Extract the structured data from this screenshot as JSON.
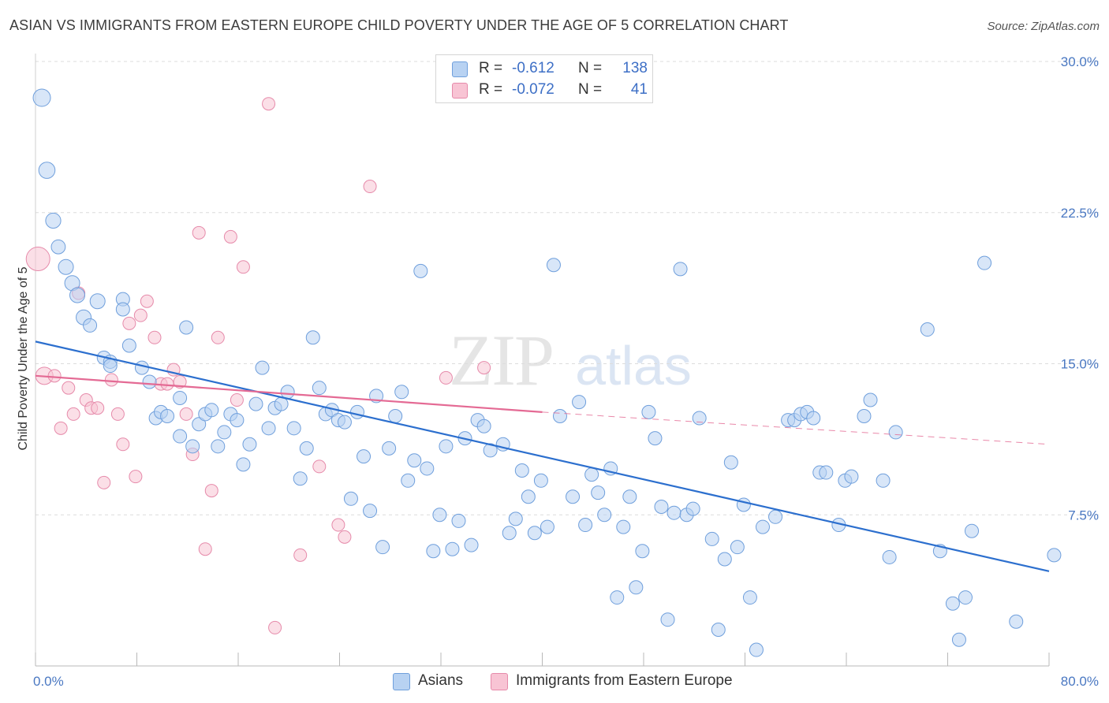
{
  "header": {
    "title": "ASIAN VS IMMIGRANTS FROM EASTERN EUROPE CHILD POVERTY UNDER THE AGE OF 5 CORRELATION CHART",
    "source": "Source: ZipAtlas.com"
  },
  "legend": {
    "r_label": "R =",
    "n_label": "N =",
    "items": [
      {
        "r": "-0.612",
        "n": "138"
      },
      {
        "r": "-0.072",
        "n": "41"
      }
    ]
  },
  "watermark": {
    "zip": "ZIP",
    "atlas": "atlas"
  },
  "colors": {
    "asians_fill": "#b8d2f2",
    "asians_stroke": "#6f9fdc",
    "asians_line": "#2c6fce",
    "imm_fill": "#f8c4d4",
    "imm_stroke": "#e68aaa",
    "imm_line": "#e46a94"
  },
  "chart_data": {
    "type": "scatter",
    "title": "ASIAN VS IMMIGRANTS FROM EASTERN EUROPE CHILD POVERTY UNDER THE AGE OF 5 CORRELATION CHART",
    "xlabel": "",
    "ylabel": "Child Poverty Under the Age of 5",
    "xlim": [
      0,
      80
    ],
    "ylim": [
      0,
      30
    ],
    "x_tick_labels": [
      "0.0%",
      "80.0%"
    ],
    "y_ticks": [
      7.5,
      15.0,
      22.5,
      30.0
    ],
    "y_tick_labels": [
      "7.5%",
      "15.0%",
      "22.5%",
      "30.0%"
    ],
    "grid": "horizontal dashed",
    "legend_position": "bottom",
    "series": [
      {
        "name": "Asians",
        "trend": {
          "x": [
            0,
            80
          ],
          "y": [
            16.1,
            4.7
          ]
        },
        "points": [
          [
            0.5,
            28.2
          ],
          [
            0.9,
            24.6
          ],
          [
            1.4,
            22.1
          ],
          [
            1.8,
            20.8
          ],
          [
            2.4,
            19.8
          ],
          [
            2.9,
            19.0
          ],
          [
            3.3,
            18.4
          ],
          [
            4.9,
            18.1
          ],
          [
            3.8,
            17.3
          ],
          [
            4.3,
            16.9
          ],
          [
            6.9,
            18.2
          ],
          [
            6.9,
            17.7
          ],
          [
            11.9,
            16.8
          ],
          [
            7.4,
            15.9
          ],
          [
            5.4,
            15.3
          ],
          [
            5.9,
            15.1
          ],
          [
            5.9,
            14.9
          ],
          [
            8.4,
            14.8
          ],
          [
            9.0,
            14.1
          ],
          [
            11.4,
            13.3
          ],
          [
            9.5,
            12.3
          ],
          [
            9.9,
            12.6
          ],
          [
            10.4,
            12.4
          ],
          [
            11.4,
            11.4
          ],
          [
            12.4,
            10.9
          ],
          [
            12.9,
            12.0
          ],
          [
            13.4,
            12.5
          ],
          [
            13.9,
            12.7
          ],
          [
            14.4,
            10.9
          ],
          [
            14.9,
            11.6
          ],
          [
            15.4,
            12.5
          ],
          [
            15.9,
            12.2
          ],
          [
            16.4,
            10.0
          ],
          [
            16.9,
            11.0
          ],
          [
            17.4,
            13.0
          ],
          [
            17.9,
            14.8
          ],
          [
            18.4,
            11.8
          ],
          [
            18.9,
            12.8
          ],
          [
            19.4,
            13.0
          ],
          [
            19.9,
            13.6
          ],
          [
            20.4,
            11.8
          ],
          [
            20.9,
            9.3
          ],
          [
            21.4,
            10.8
          ],
          [
            21.9,
            16.3
          ],
          [
            22.4,
            13.8
          ],
          [
            22.9,
            12.5
          ],
          [
            23.4,
            12.7
          ],
          [
            23.9,
            12.2
          ],
          [
            24.4,
            12.1
          ],
          [
            24.9,
            8.3
          ],
          [
            25.4,
            12.6
          ],
          [
            25.9,
            10.4
          ],
          [
            26.4,
            7.7
          ],
          [
            26.9,
            13.4
          ],
          [
            27.4,
            5.9
          ],
          [
            27.9,
            10.8
          ],
          [
            28.4,
            12.4
          ],
          [
            28.9,
            13.6
          ],
          [
            29.4,
            9.2
          ],
          [
            29.9,
            10.2
          ],
          [
            30.4,
            19.6
          ],
          [
            30.9,
            9.8
          ],
          [
            31.4,
            5.7
          ],
          [
            31.9,
            7.5
          ],
          [
            32.4,
            10.9
          ],
          [
            32.9,
            5.8
          ],
          [
            33.4,
            7.2
          ],
          [
            33.9,
            11.3
          ],
          [
            34.4,
            6.0
          ],
          [
            34.9,
            12.2
          ],
          [
            35.4,
            11.9
          ],
          [
            35.9,
            10.7
          ],
          [
            36.9,
            11.0
          ],
          [
            37.4,
            6.6
          ],
          [
            37.9,
            7.3
          ],
          [
            38.4,
            9.7
          ],
          [
            38.9,
            8.4
          ],
          [
            39.4,
            6.6
          ],
          [
            39.9,
            9.2
          ],
          [
            40.4,
            6.9
          ],
          [
            40.9,
            19.9
          ],
          [
            41.4,
            12.4
          ],
          [
            42.4,
            8.4
          ],
          [
            42.9,
            13.1
          ],
          [
            43.4,
            7.0
          ],
          [
            43.9,
            9.5
          ],
          [
            44.4,
            8.6
          ],
          [
            44.9,
            7.5
          ],
          [
            45.4,
            9.8
          ],
          [
            45.9,
            3.4
          ],
          [
            46.4,
            6.9
          ],
          [
            46.9,
            8.4
          ],
          [
            47.4,
            3.9
          ],
          [
            47.9,
            5.7
          ],
          [
            48.4,
            12.6
          ],
          [
            48.9,
            11.3
          ],
          [
            49.4,
            7.9
          ],
          [
            49.9,
            2.3
          ],
          [
            50.4,
            7.6
          ],
          [
            50.9,
            19.7
          ],
          [
            51.4,
            7.5
          ],
          [
            51.9,
            7.8
          ],
          [
            52.4,
            12.3
          ],
          [
            53.4,
            6.3
          ],
          [
            53.9,
            1.8
          ],
          [
            54.4,
            5.3
          ],
          [
            54.9,
            10.1
          ],
          [
            55.4,
            5.9
          ],
          [
            55.9,
            8.0
          ],
          [
            56.4,
            3.4
          ],
          [
            56.9,
            0.8
          ],
          [
            57.4,
            6.9
          ],
          [
            58.4,
            7.4
          ],
          [
            59.4,
            12.2
          ],
          [
            59.9,
            12.2
          ],
          [
            60.4,
            12.5
          ],
          [
            60.9,
            12.6
          ],
          [
            61.4,
            12.3
          ],
          [
            61.9,
            9.6
          ],
          [
            62.4,
            9.6
          ],
          [
            63.4,
            7.0
          ],
          [
            63.9,
            9.2
          ],
          [
            64.4,
            9.4
          ],
          [
            65.4,
            12.4
          ],
          [
            65.9,
            13.2
          ],
          [
            66.9,
            9.2
          ],
          [
            67.4,
            5.4
          ],
          [
            67.9,
            11.6
          ],
          [
            70.4,
            16.7
          ],
          [
            71.4,
            5.7
          ],
          [
            72.4,
            3.1
          ],
          [
            72.9,
            1.3
          ],
          [
            73.4,
            3.4
          ],
          [
            73.9,
            6.7
          ],
          [
            74.9,
            20.0
          ],
          [
            77.4,
            2.2
          ],
          [
            80.4,
            5.5
          ]
        ]
      },
      {
        "name": "Immigrants from Eastern Europe",
        "trend": {
          "x": [
            0,
            40
          ],
          "y": [
            14.4,
            12.6
          ]
        },
        "trend_dashed": {
          "x": [
            40,
            80
          ],
          "y": [
            12.6,
            11.0
          ]
        },
        "points": [
          [
            0.2,
            20.2
          ],
          [
            0.7,
            14.4
          ],
          [
            1.5,
            14.4
          ],
          [
            2.0,
            11.8
          ],
          [
            2.6,
            13.8
          ],
          [
            3.0,
            12.5
          ],
          [
            3.4,
            18.5
          ],
          [
            4.0,
            13.2
          ],
          [
            4.4,
            12.8
          ],
          [
            4.9,
            12.8
          ],
          [
            5.4,
            9.1
          ],
          [
            6.0,
            14.2
          ],
          [
            6.5,
            12.5
          ],
          [
            6.9,
            11.0
          ],
          [
            7.4,
            17.0
          ],
          [
            7.9,
            9.4
          ],
          [
            8.3,
            17.4
          ],
          [
            8.8,
            18.1
          ],
          [
            9.4,
            16.3
          ],
          [
            9.9,
            14.0
          ],
          [
            10.4,
            14.0
          ],
          [
            10.9,
            14.7
          ],
          [
            11.4,
            14.1
          ],
          [
            11.9,
            12.5
          ],
          [
            12.4,
            10.5
          ],
          [
            12.9,
            21.5
          ],
          [
            13.4,
            5.8
          ],
          [
            13.9,
            8.7
          ],
          [
            14.4,
            16.3
          ],
          [
            15.4,
            21.3
          ],
          [
            15.9,
            13.2
          ],
          [
            16.4,
            19.8
          ],
          [
            18.4,
            27.9
          ],
          [
            18.9,
            1.9
          ],
          [
            20.9,
            5.5
          ],
          [
            22.4,
            9.9
          ],
          [
            23.9,
            7.0
          ],
          [
            24.4,
            6.4
          ],
          [
            26.4,
            23.8
          ],
          [
            32.4,
            14.3
          ],
          [
            35.4,
            14.8
          ]
        ]
      }
    ]
  },
  "bottom_legend": {
    "items": [
      {
        "label": "Asians"
      },
      {
        "label": "Immigrants from Eastern Europe"
      }
    ]
  }
}
